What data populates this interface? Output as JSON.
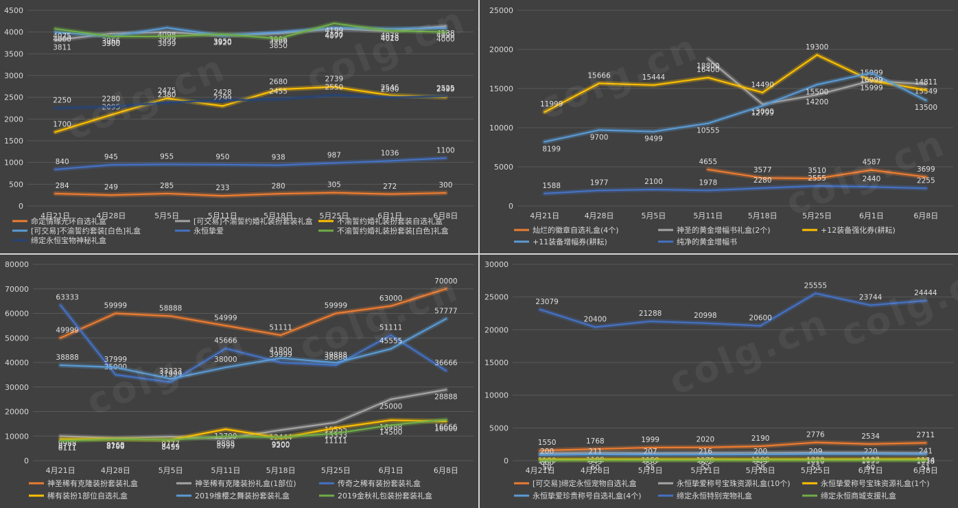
{
  "watermark": "colg.cn",
  "chart_data": [
    {
      "type": "line",
      "title": "",
      "categories": [
        "4月21日",
        "4月28日",
        "5月5日",
        "5月11日",
        "5月18日",
        "5月25日",
        "6月1日",
        "6月8日"
      ],
      "ylim": [
        0,
        4500
      ],
      "yticks": [
        0,
        500,
        1000,
        1500,
        2000,
        2500,
        3000,
        3500,
        4000,
        4500
      ],
      "grid": true,
      "legend_position": "bottom",
      "series": [
        {
          "name": "命定情缘光环自选礼盒",
          "color": "#ed7d31",
          "values": [
            284,
            249,
            285,
            233,
            280,
            305,
            272,
            300
          ]
        },
        {
          "name": "[可交易]不渝誓约婚礼装扮套装礼盒",
          "color": "#a5a5a5",
          "values": [
            3811,
            3966,
            3999,
            3920,
            3966,
            4077,
            4018,
            4138
          ]
        },
        {
          "name": "不渝誓约婚礼装扮套装自选礼盒",
          "color": "#ffc000",
          "values": [
            1700,
            2095,
            2475,
            2299,
            2680,
            2739,
            2546,
            2499
          ]
        },
        {
          "name": "[可交易]不渝誓约套装[白色]礼盒",
          "color": "#5b9bd5",
          "values": [
            4000,
            3900,
            4098,
            3920,
            3996,
            4100,
            4078,
            4090
          ]
        },
        {
          "name": "永恒挚爱",
          "color": "#4472c4",
          "values": [
            840,
            945,
            955,
            950,
            938,
            987,
            1036,
            1100
          ]
        },
        {
          "name": "不渝誓约婚礼装扮套装[白色]礼盒",
          "color": "#70ad47",
          "values": [
            4075,
            3900,
            3899,
            3950,
            3850,
            4199,
            4028,
            4000
          ]
        },
        {
          "name": "缔定永恒宝物神秘礼盒",
          "color": "#264478",
          "values": [
            2250,
            2280,
            2380,
            2428,
            2455,
            2550,
            2500,
            2525
          ]
        }
      ]
    },
    {
      "type": "line",
      "title": "",
      "categories": [
        "4月21日",
        "4月28日",
        "5月5日",
        "5月11日",
        "5月18日",
        "5月25日",
        "6月1日",
        "6月8日"
      ],
      "ylim": [
        0,
        25000
      ],
      "yticks": [
        0,
        5000,
        10000,
        15000,
        20000,
        25000
      ],
      "grid": true,
      "legend_position": "bottom",
      "series": [
        {
          "name": "灿烂的徽章自选礼盒(4个)",
          "color": "#ed7d31",
          "values": [
            null,
            null,
            null,
            4655,
            3577,
            3510,
            4587,
            3699
          ]
        },
        {
          "name": "神圣的黄金增幅书礼盒(2个)",
          "color": "#a5a5a5",
          "values": [
            null,
            null,
            null,
            18800,
            13000,
            14200,
            15999,
            15549
          ]
        },
        {
          "name": "+12装备强化券(耕耘)",
          "color": "#ffc000",
          "values": [
            11999,
            15666,
            15444,
            16400,
            14490,
            19300,
            15999,
            14811
          ]
        },
        {
          "name": "+11装备增幅券(耕耘)",
          "color": "#5b9bd5",
          "values": [
            8199,
            9700,
            9499,
            10555,
            12799,
            15500,
            16999,
            13500
          ]
        },
        {
          "name": "纯净的黄金增幅书",
          "color": "#4472c4",
          "values": [
            1588,
            1977,
            2100,
            1978,
            2280,
            2555,
            2440,
            2255
          ]
        }
      ]
    },
    {
      "type": "line",
      "title": "",
      "categories": [
        "4月21日",
        "4月28日",
        "5月5日",
        "5月11日",
        "5月18日",
        "5月25日",
        "6月1日",
        "6月8日"
      ],
      "ylim": [
        0,
        80000
      ],
      "yticks": [
        0,
        10000,
        20000,
        30000,
        40000,
        50000,
        60000,
        70000,
        80000
      ],
      "grid": true,
      "legend_position": "bottom",
      "series": [
        {
          "name": "神圣稀有克隆装扮套装礼盒",
          "color": "#ed7d31",
          "values": [
            49999,
            59999,
            58888,
            54999,
            51111,
            59999,
            63000,
            70000
          ]
        },
        {
          "name": "神圣稀有克隆装扮礼盒(1部位)",
          "color": "#a5a5a5",
          "values": [
            9988,
            9168,
            9777,
            8999,
            12444,
            15555,
            25000,
            28888
          ]
        },
        {
          "name": "传奇之稀有装扮套装礼盒",
          "color": "#4472c4",
          "values": [
            63333,
            35000,
            31999,
            45666,
            39999,
            38888,
            51111,
            36666
          ]
        },
        {
          "name": "稀有装扮1部位自选礼盒",
          "color": "#ffc000",
          "values": [
            8777,
            8799,
            8499,
            12799,
            9200,
            13333,
            16488,
            16000
          ]
        },
        {
          "name": "2019维樱之舞装扮套装礼盒",
          "color": "#5b9bd5",
          "values": [
            38888,
            37999,
            33333,
            38000,
            41800,
            39888,
            45555,
            57777
          ]
        },
        {
          "name": "2019金秋礼包装扮套装礼盒",
          "color": "#70ad47",
          "values": [
            8111,
            8700,
            8455,
            9888,
            9500,
            11111,
            14500,
            16666
          ]
        }
      ]
    },
    {
      "type": "line",
      "title": "",
      "categories": [
        "4月21日",
        "4月28日",
        "5月5日",
        "5月11日",
        "5月18日",
        "5月25日",
        "6月1日",
        "6月8日"
      ],
      "ylim": [
        0,
        30000
      ],
      "yticks": [
        0,
        5000,
        10000,
        15000,
        20000,
        25000,
        30000
      ],
      "grid": true,
      "legend_position": "bottom",
      "series": [
        {
          "name": "[可交易]缔定永恒宠物自选礼盒",
          "color": "#ed7d31",
          "values": [
            1550,
            1768,
            1999,
            2020,
            2190,
            2776,
            2534,
            2711
          ]
        },
        {
          "name": "永恒挚爱称号宝珠资源礼盒(10个)",
          "color": "#a5a5a5",
          "values": [
            1100,
            1198,
            1159,
            1179,
            1198,
            1229,
            1197,
            1134
          ]
        },
        {
          "name": "永恒挚爱称号宝珠资源礼盒(1个)",
          "color": "#ffc000",
          "values": [
            200,
            211,
            207,
            216,
            200,
            209,
            220,
            241
          ]
        },
        {
          "name": "永恒挚爱珍贵称号自选礼盒(4个)",
          "color": "#5b9bd5",
          "values": [
            860,
            949,
            930,
            922,
            949,
            1010,
            1033,
            1018
          ]
        },
        {
          "name": "缔定永恒特别宠物礼盒",
          "color": "#4472c4",
          "values": [
            23079,
            20400,
            21288,
            20998,
            20600,
            25555,
            23744,
            24444
          ]
        },
        {
          "name": "缔定永恒商城支援礼盒",
          "color": "#70ad47",
          "values": [
            50,
            60,
            55,
            52,
            58,
            53,
            60,
            51
          ]
        }
      ]
    }
  ]
}
